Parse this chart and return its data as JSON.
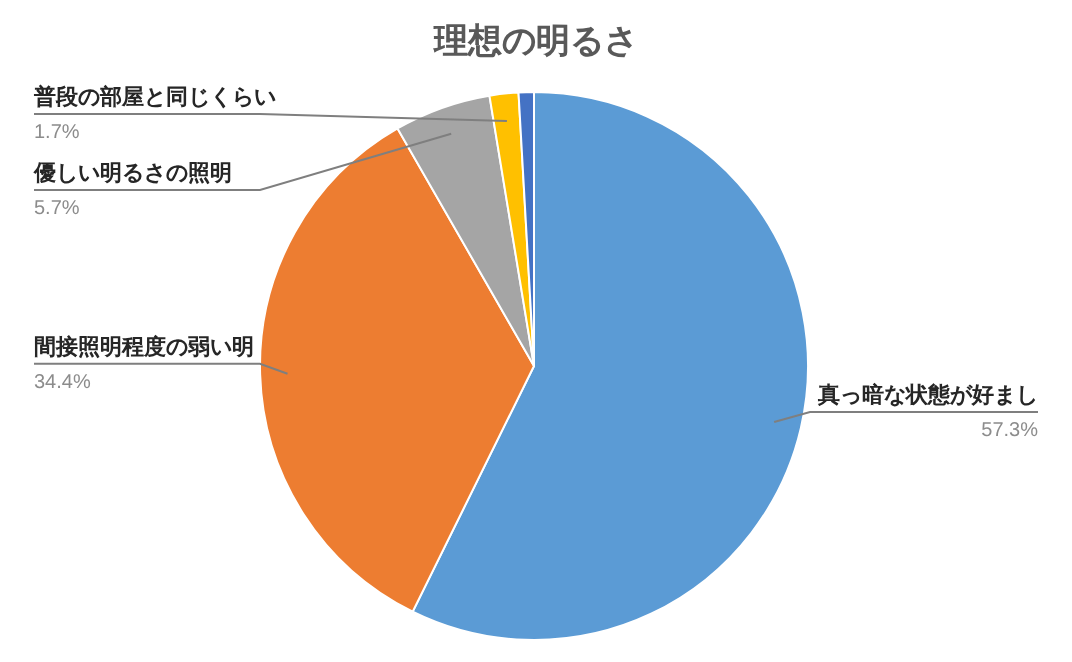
{
  "chart_data": {
    "type": "pie",
    "title": "理想の明るさ",
    "categories": [
      "真っ暗な状態が好まし",
      "間接照明程度の弱い明",
      "優しい明るさの照明",
      "普段の部屋と同じくらい",
      null
    ],
    "values": [
      57.3,
      34.4,
      5.7,
      1.7,
      0.9
    ],
    "value_labels": [
      "57.3%",
      "34.4%",
      "5.7%",
      "1.7%",
      null
    ],
    "colors": [
      "#5b9bd5",
      "#ed7d31",
      "#a5a5a5",
      "#ffc000",
      "#4472c4"
    ],
    "legend": false
  }
}
